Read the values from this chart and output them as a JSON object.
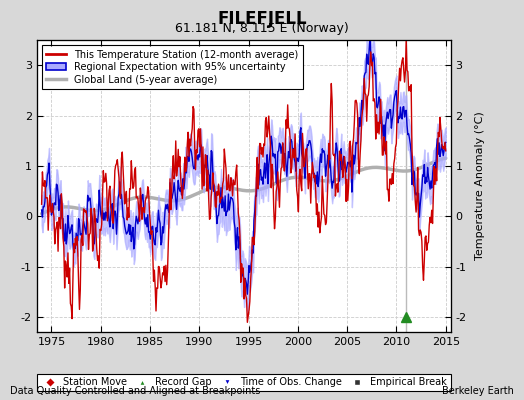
{
  "title": "FILEFJELL",
  "subtitle": "61.181 N, 8.115 E (Norway)",
  "xlabel_bottom": "Data Quality Controlled and Aligned at Breakpoints",
  "xlabel_right": "Berkeley Earth",
  "ylabel": "Temperature Anomaly (°C)",
  "xlim": [
    1973.5,
    2015.5
  ],
  "ylim": [
    -2.3,
    3.5
  ],
  "yticks": [
    -2,
    -1,
    0,
    1,
    2,
    3
  ],
  "xticks": [
    1975,
    1980,
    1985,
    1990,
    1995,
    2000,
    2005,
    2010,
    2015
  ],
  "bg_color": "#d8d8d8",
  "plot_bg_color": "#ffffff",
  "station_color": "#cc0000",
  "regional_color": "#0000cc",
  "regional_fill_color": "#aaaaff",
  "global_color": "#b0b0b0",
  "legend_items": [
    "This Temperature Station (12-month average)",
    "Regional Expectation with 95% uncertainty",
    "Global Land (5-year average)"
  ],
  "record_gap_x": 2011.0,
  "record_gap_y": -2.0,
  "breakpoint_x": 2011.0
}
